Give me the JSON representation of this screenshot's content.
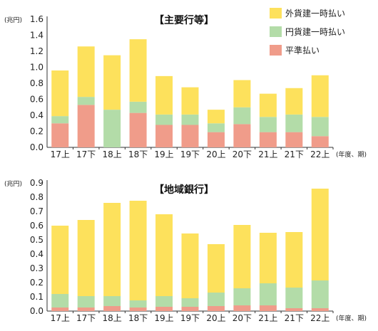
{
  "chart_data": [
    {
      "type": "bar",
      "stacked": true,
      "title": "【主要行等】",
      "unit_label": "(兆円)",
      "x_unit_label": "(年度、期)",
      "categories": [
        "17上",
        "17下",
        "18上",
        "18下",
        "19上",
        "19下",
        "20上",
        "20下",
        "21上",
        "21下",
        "22上"
      ],
      "ylim": [
        0,
        1.6
      ],
      "yticks": [
        "0.0",
        "0.2",
        "0.4",
        "0.6",
        "0.8",
        "1.0",
        "1.2",
        "1.4",
        "1.6"
      ],
      "legend_position": "top-right",
      "series": [
        {
          "name": "平準払い",
          "color": "#f09c8a",
          "values": [
            0.3,
            0.53,
            0.0,
            0.43,
            0.28,
            0.28,
            0.19,
            0.29,
            0.19,
            0.19,
            0.14
          ]
        },
        {
          "name": "円貨建一時払い",
          "color": "#b3dca8",
          "values": [
            0.09,
            0.1,
            0.47,
            0.14,
            0.13,
            0.13,
            0.11,
            0.21,
            0.19,
            0.22,
            0.24
          ]
        },
        {
          "name": "外貨建一時払い",
          "color": "#fde15c",
          "values": [
            0.57,
            0.63,
            0.68,
            0.78,
            0.48,
            0.34,
            0.17,
            0.34,
            0.29,
            0.33,
            0.52
          ]
        }
      ]
    },
    {
      "type": "bar",
      "stacked": true,
      "title": "【地域銀行】",
      "unit_label": "(兆円)",
      "x_unit_label": "(年度、期)",
      "categories": [
        "17上",
        "17下",
        "18上",
        "18下",
        "19上",
        "19下",
        "20上",
        "20下",
        "21上",
        "21下",
        "22上"
      ],
      "ylim": [
        0,
        0.9
      ],
      "yticks": [
        "0.0",
        "0.1",
        "0.2",
        "0.3",
        "0.4",
        "0.5",
        "0.6",
        "0.7",
        "0.8",
        "0.9"
      ],
      "series": [
        {
          "name": "平準払い",
          "color": "#f09c8a",
          "values": [
            0.025,
            0.025,
            0.035,
            0.025,
            0.03,
            0.03,
            0.035,
            0.04,
            0.04,
            0.02,
            0.02
          ]
        },
        {
          "name": "円貨建一時払い",
          "color": "#b3dca8",
          "values": [
            0.095,
            0.08,
            0.07,
            0.05,
            0.075,
            0.06,
            0.095,
            0.12,
            0.155,
            0.145,
            0.195
          ]
        },
        {
          "name": "外貨建一時払い",
          "color": "#fde15c",
          "values": [
            0.48,
            0.535,
            0.655,
            0.7,
            0.575,
            0.455,
            0.34,
            0.445,
            0.355,
            0.39,
            0.645
          ]
        }
      ]
    }
  ]
}
